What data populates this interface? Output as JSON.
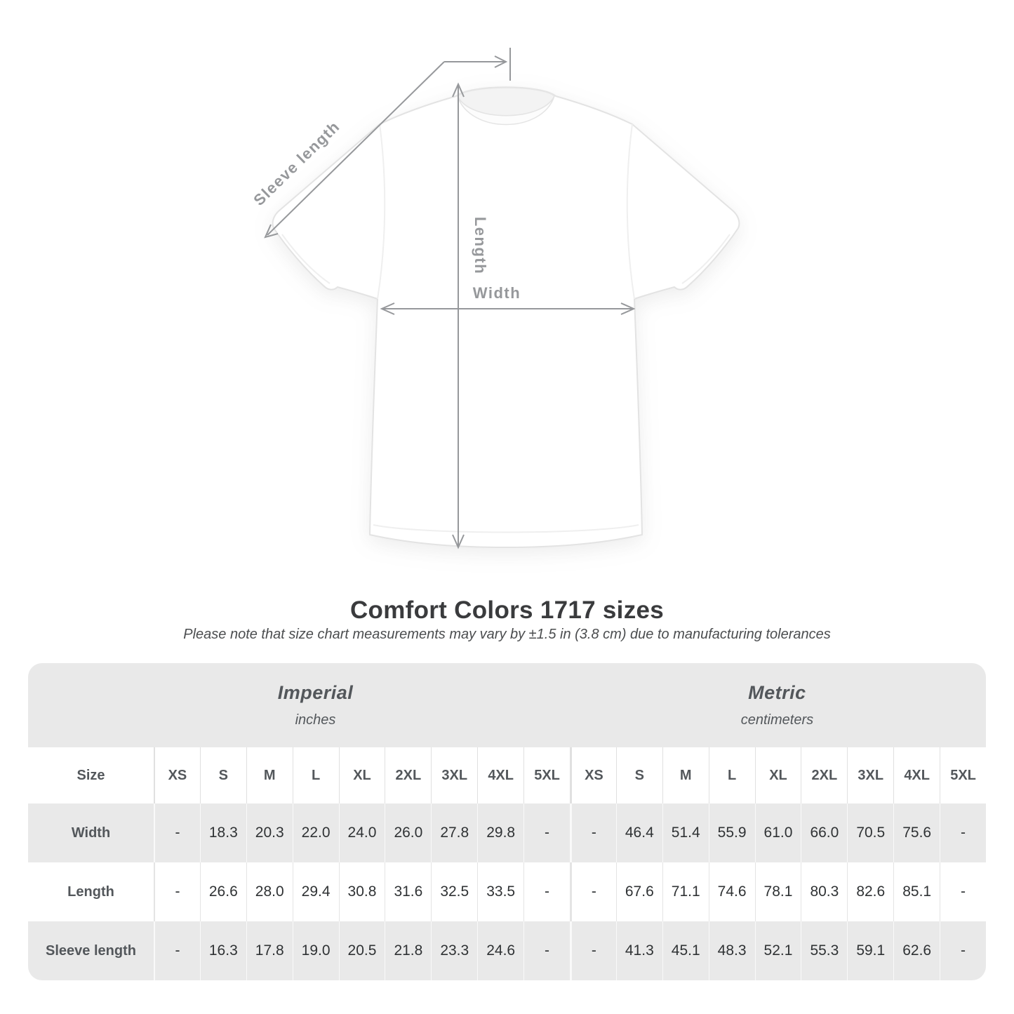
{
  "title": "Comfort Colors 1717 sizes",
  "note": "Please note that size chart measurements may vary by ±1.5 in (3.8 cm) due to manufacturing tolerances",
  "diagram": {
    "labels": {
      "sleeve_length": "Sleeve length",
      "length": "Length",
      "width": "Width"
    }
  },
  "table": {
    "units": [
      {
        "name": "Imperial",
        "subtitle": "inches"
      },
      {
        "name": "Metric",
        "subtitle": "centimeters"
      }
    ],
    "size_header": "Size",
    "sizes": [
      "XS",
      "S",
      "M",
      "L",
      "XL",
      "2XL",
      "3XL",
      "4XL",
      "5XL"
    ],
    "rows": [
      {
        "label": "Width",
        "imperial": [
          "-",
          "18.3",
          "20.3",
          "22.0",
          "24.0",
          "26.0",
          "27.8",
          "29.8",
          "-"
        ],
        "metric": [
          "-",
          "46.4",
          "51.4",
          "55.9",
          "61.0",
          "66.0",
          "70.5",
          "75.6",
          "-"
        ]
      },
      {
        "label": "Length",
        "imperial": [
          "-",
          "26.6",
          "28.0",
          "29.4",
          "30.8",
          "31.6",
          "32.5",
          "33.5",
          "-"
        ],
        "metric": [
          "-",
          "67.6",
          "71.1",
          "74.6",
          "78.1",
          "80.3",
          "82.6",
          "85.1",
          "-"
        ]
      },
      {
        "label": "Sleeve length",
        "imperial": [
          "-",
          "16.3",
          "17.8",
          "19.0",
          "20.5",
          "21.8",
          "23.3",
          "24.6",
          "-"
        ],
        "metric": [
          "-",
          "41.3",
          "45.1",
          "48.3",
          "52.1",
          "55.3",
          "59.1",
          "62.6",
          "-"
        ]
      }
    ]
  },
  "colors": {
    "table_band_gray": "#e9e9e9",
    "measure_line_gray": "#96989b",
    "value_text": "#2f3234",
    "header_text": "#53575b",
    "title_text": "#3a3b3d"
  }
}
